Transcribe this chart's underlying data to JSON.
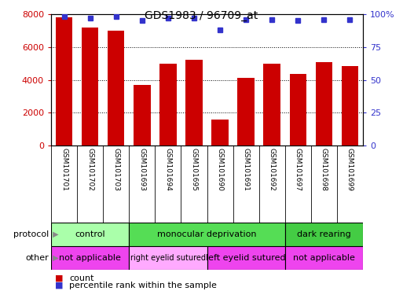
{
  "title": "GDS1983 / 96709_at",
  "samples": [
    "GSM101701",
    "GSM101702",
    "GSM101703",
    "GSM101693",
    "GSM101694",
    "GSM101695",
    "GSM101690",
    "GSM101691",
    "GSM101692",
    "GSM101697",
    "GSM101698",
    "GSM101699"
  ],
  "counts": [
    7800,
    7200,
    7000,
    3700,
    5000,
    5200,
    1600,
    4100,
    5000,
    4350,
    5100,
    4850
  ],
  "percentile_ranks": [
    98,
    97,
    98,
    95,
    97,
    97,
    88,
    96,
    96,
    95,
    96,
    96
  ],
  "bar_color": "#cc0000",
  "dot_color": "#3333cc",
  "ylim_left": [
    0,
    8000
  ],
  "ylim_right": [
    0,
    100
  ],
  "yticks_left": [
    0,
    2000,
    4000,
    6000,
    8000
  ],
  "yticks_right": [
    0,
    25,
    50,
    75,
    100
  ],
  "protocol_groups": [
    {
      "label": "control",
      "start": 0,
      "end": 3,
      "color": "#aaffaa"
    },
    {
      "label": "monocular deprivation",
      "start": 3,
      "end": 9,
      "color": "#55dd55"
    },
    {
      "label": "dark rearing",
      "start": 9,
      "end": 12,
      "color": "#44cc44"
    }
  ],
  "other_groups": [
    {
      "label": "not applicable",
      "start": 0,
      "end": 3,
      "color": "#ee44ee"
    },
    {
      "label": "right eyelid sutured",
      "start": 3,
      "end": 6,
      "color": "#ffaaff"
    },
    {
      "label": "left eyelid sutured",
      "start": 6,
      "end": 9,
      "color": "#ee44ee"
    },
    {
      "label": "not applicable",
      "start": 9,
      "end": 12,
      "color": "#ee44ee"
    }
  ],
  "legend_count_label": "count",
  "legend_pct_label": "percentile rank within the sample",
  "protocol_label": "protocol",
  "other_label": "other",
  "background_color": "#ffffff",
  "tick_label_color_left": "#cc0000",
  "tick_label_color_right": "#3333cc",
  "sample_bg_color": "#cccccc",
  "sample_border_color": "#888888"
}
